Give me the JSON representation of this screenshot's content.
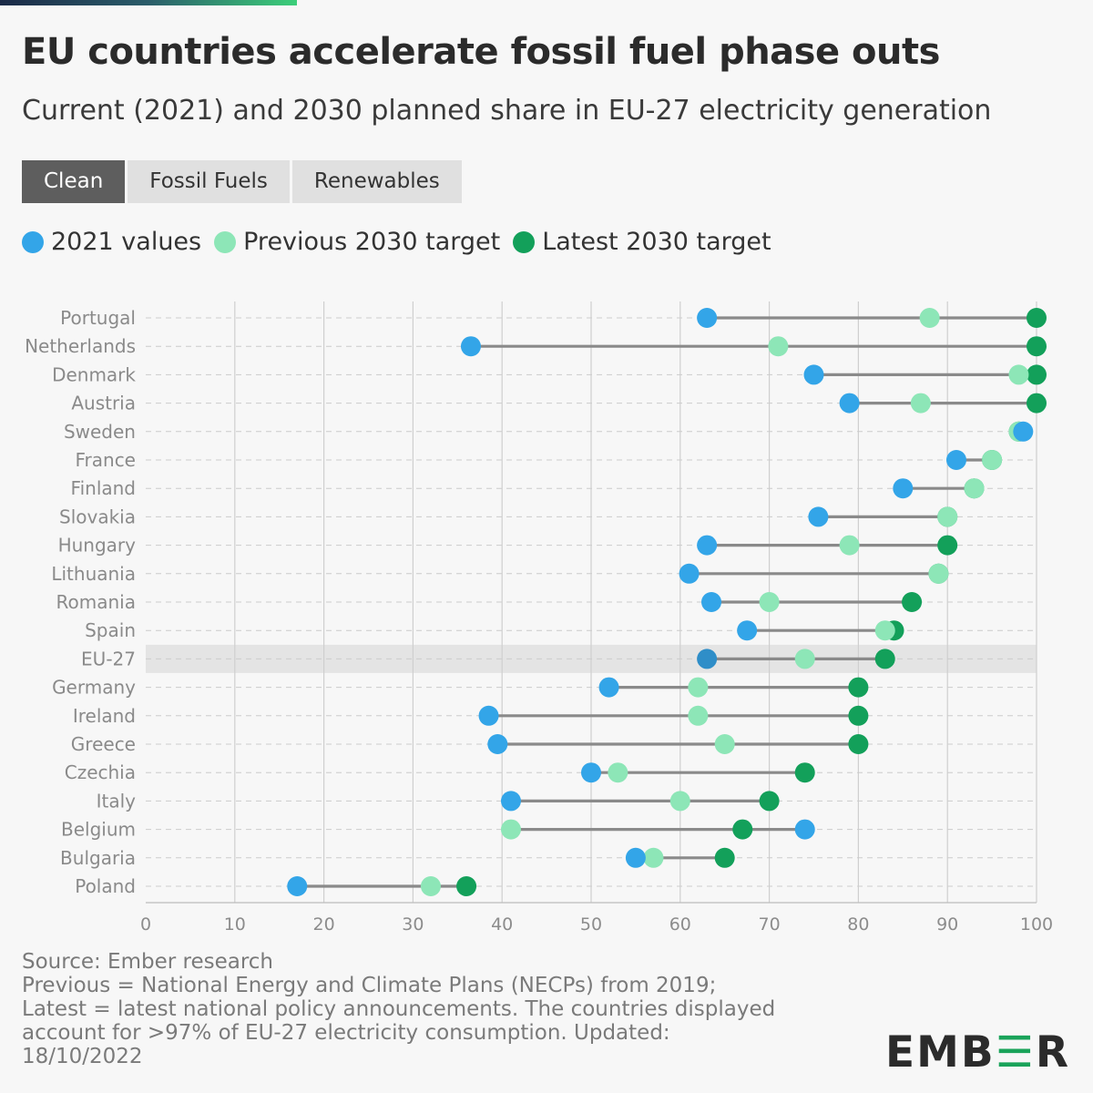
{
  "header": {
    "title": "EU countries accelerate fossil fuel phase outs",
    "subtitle": "Current (2021) and 2030 planned share in EU-27 electricity generation"
  },
  "tabs": [
    {
      "label": "Clean",
      "active": true
    },
    {
      "label": "Fossil Fuels",
      "active": false
    },
    {
      "label": "Renewables",
      "active": false
    }
  ],
  "legend": [
    {
      "label": "2021 values",
      "color": "#33a5e8"
    },
    {
      "label": "Previous 2030 target",
      "color": "#8de6b7"
    },
    {
      "label": "Latest 2030 target",
      "color": "#13a05a"
    }
  ],
  "footer": {
    "source_lines": [
      "Source: Ember research",
      "Previous = National Energy and Climate Plans (NECPs) from 2019;",
      "Latest = latest national policy announcements. The countries displayed",
      "account for >97% of EU-27 electricity consumption. Updated:",
      "18/10/2022"
    ],
    "logo_pre": "EMB",
    "logo_accent": "☰",
    "logo_post": "R"
  },
  "chart_data": {
    "type": "dumbbell",
    "xlim": [
      0,
      100
    ],
    "xticks": [
      0,
      10,
      20,
      30,
      40,
      50,
      60,
      70,
      80,
      90,
      100
    ],
    "highlight": "EU-27",
    "colors": {
      "v2021": "#33a5e8",
      "previous": "#8de6b7",
      "latest": "#13a05a",
      "line": "#8a8a8a"
    },
    "rows": [
      {
        "country": "Portugal",
        "v2021": 63,
        "previous": 88,
        "latest": 100
      },
      {
        "country": "Netherlands",
        "v2021": 36.5,
        "previous": 71,
        "latest": 100
      },
      {
        "country": "Denmark",
        "v2021": 75,
        "previous": 98,
        "latest": 100
      },
      {
        "country": "Austria",
        "v2021": 79,
        "previous": 87,
        "latest": 100
      },
      {
        "country": "Sweden",
        "v2021": 98.5,
        "previous": 98,
        "latest": 98
      },
      {
        "country": "France",
        "v2021": 91,
        "previous": 95,
        "latest": 95
      },
      {
        "country": "Finland",
        "v2021": 85,
        "previous": 93,
        "latest": 93
      },
      {
        "country": "Slovakia",
        "v2021": 75.5,
        "previous": 90,
        "latest": 90
      },
      {
        "country": "Hungary",
        "v2021": 63,
        "previous": 79,
        "latest": 90
      },
      {
        "country": "Lithuania",
        "v2021": 61,
        "previous": 89,
        "latest": 89
      },
      {
        "country": "Romania",
        "v2021": 63.5,
        "previous": 70,
        "latest": 86
      },
      {
        "country": "Spain",
        "v2021": 67.5,
        "previous": 83,
        "latest": 84
      },
      {
        "country": "EU-27",
        "v2021": 63,
        "previous": 74,
        "latest": 83
      },
      {
        "country": "Germany",
        "v2021": 52,
        "previous": 62,
        "latest": 80
      },
      {
        "country": "Ireland",
        "v2021": 38.5,
        "previous": 62,
        "latest": 80
      },
      {
        "country": "Greece",
        "v2021": 39.5,
        "previous": 65,
        "latest": 80
      },
      {
        "country": "Czechia",
        "v2021": 50,
        "previous": 53,
        "latest": 74
      },
      {
        "country": "Italy",
        "v2021": 41,
        "previous": 60,
        "latest": 70
      },
      {
        "country": "Belgium",
        "v2021": 74,
        "previous": 41,
        "latest": 67
      },
      {
        "country": "Bulgaria",
        "v2021": 55,
        "previous": 57,
        "latest": 65
      },
      {
        "country": "Poland",
        "v2021": 17,
        "previous": 32,
        "latest": 36
      }
    ]
  }
}
